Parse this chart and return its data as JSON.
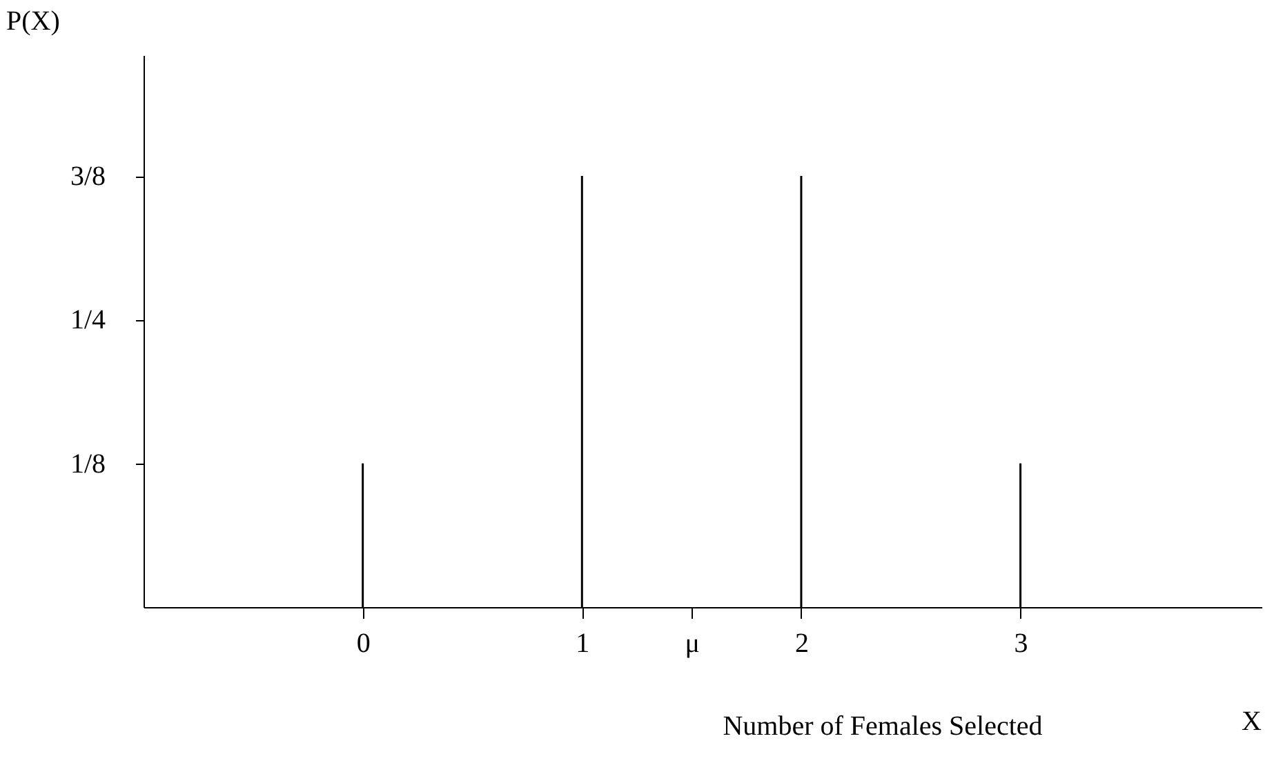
{
  "chart_data": {
    "type": "bar",
    "xlabel": "Number of Females Selected",
    "ylabel": "P(X)",
    "annotations": [
      "X"
    ],
    "x": [
      0,
      1,
      2,
      3
    ],
    "values": [
      0.125,
      0.375,
      0.375,
      0.125
    ],
    "color": "#000000",
    "xlim": [
      -1,
      4.1
    ],
    "xticks": [
      0,
      1,
      {
        "value": 1.5,
        "label": "μ"
      },
      2,
      3
    ],
    "ylim": [
      0,
      0.48
    ],
    "yticks": [
      {
        "value": 0.125,
        "label": "1/8"
      },
      {
        "value": 0.25,
        "label": "1/4"
      },
      {
        "value": 0.375,
        "label": "3/8"
      }
    ],
    "grid": false
  }
}
